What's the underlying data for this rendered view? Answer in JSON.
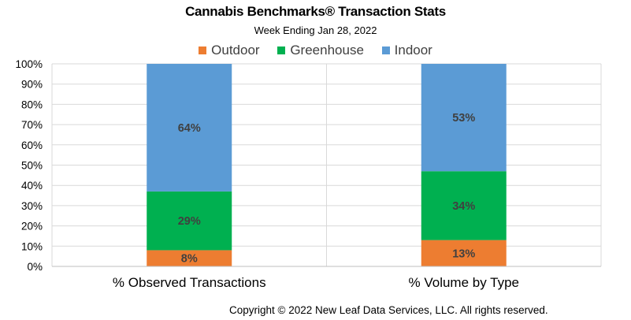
{
  "chart_data": {
    "type": "bar",
    "stacked": true,
    "title": "Cannabis Benchmarks® Transaction Stats",
    "subtitle": "Week Ending Jan 28, 2022",
    "categories": [
      "% Observed Transactions",
      "% Volume by Type"
    ],
    "series": [
      {
        "name": "Outdoor",
        "color": "#ED7D31",
        "values": [
          8,
          13
        ],
        "labels": [
          "8%",
          "13%"
        ]
      },
      {
        "name": "Greenhouse",
        "color": "#00B050",
        "values": [
          29,
          34
        ],
        "labels": [
          "29%",
          "34%"
        ]
      },
      {
        "name": "Indoor",
        "color": "#5B9BD5",
        "values": [
          64,
          53
        ],
        "labels": [
          "64%",
          "53%"
        ]
      }
    ],
    "ylim": [
      0,
      100
    ],
    "yticks": [
      "0%",
      "10%",
      "20%",
      "30%",
      "40%",
      "50%",
      "60%",
      "70%",
      "80%",
      "90%",
      "100%"
    ],
    "grid": true,
    "legend_position": "top"
  },
  "footer": {
    "copyright": "Copyright © 2022 New Leaf Data Services, LLC. All rights reserved."
  }
}
